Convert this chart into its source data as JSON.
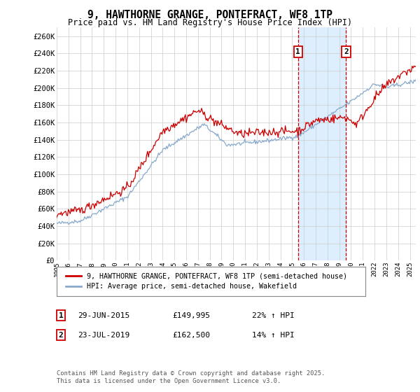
{
  "title": "9, HAWTHORNE GRANGE, PONTEFRACT, WF8 1TP",
  "subtitle": "Price paid vs. HM Land Registry's House Price Index (HPI)",
  "red_label": "9, HAWTHORNE GRANGE, PONTEFRACT, WF8 1TP (semi-detached house)",
  "blue_label": "HPI: Average price, semi-detached house, Wakefield",
  "annotation1_date": "29-JUN-2015",
  "annotation1_price": "£149,995",
  "annotation1_hpi": "22% ↑ HPI",
  "annotation2_date": "23-JUL-2019",
  "annotation2_price": "£162,500",
  "annotation2_hpi": "14% ↑ HPI",
  "footer": "Contains HM Land Registry data © Crown copyright and database right 2025.\nThis data is licensed under the Open Government Licence v3.0.",
  "ylim": [
    0,
    270000
  ],
  "yticks": [
    0,
    20000,
    40000,
    60000,
    80000,
    100000,
    120000,
    140000,
    160000,
    180000,
    200000,
    220000,
    240000,
    260000
  ],
  "background_color": "#ffffff",
  "plot_bg_color": "#ffffff",
  "grid_color": "#cccccc",
  "red_color": "#cc0000",
  "blue_color": "#88aacc",
  "shade_color": "#ddeeff",
  "marker1_x": 2015.5,
  "marker2_x": 2019.58,
  "noise_scale_red": 2500,
  "noise_scale_blue": 1200,
  "line_width": 0.9,
  "xstart": 1995,
  "xend": 2025.5
}
